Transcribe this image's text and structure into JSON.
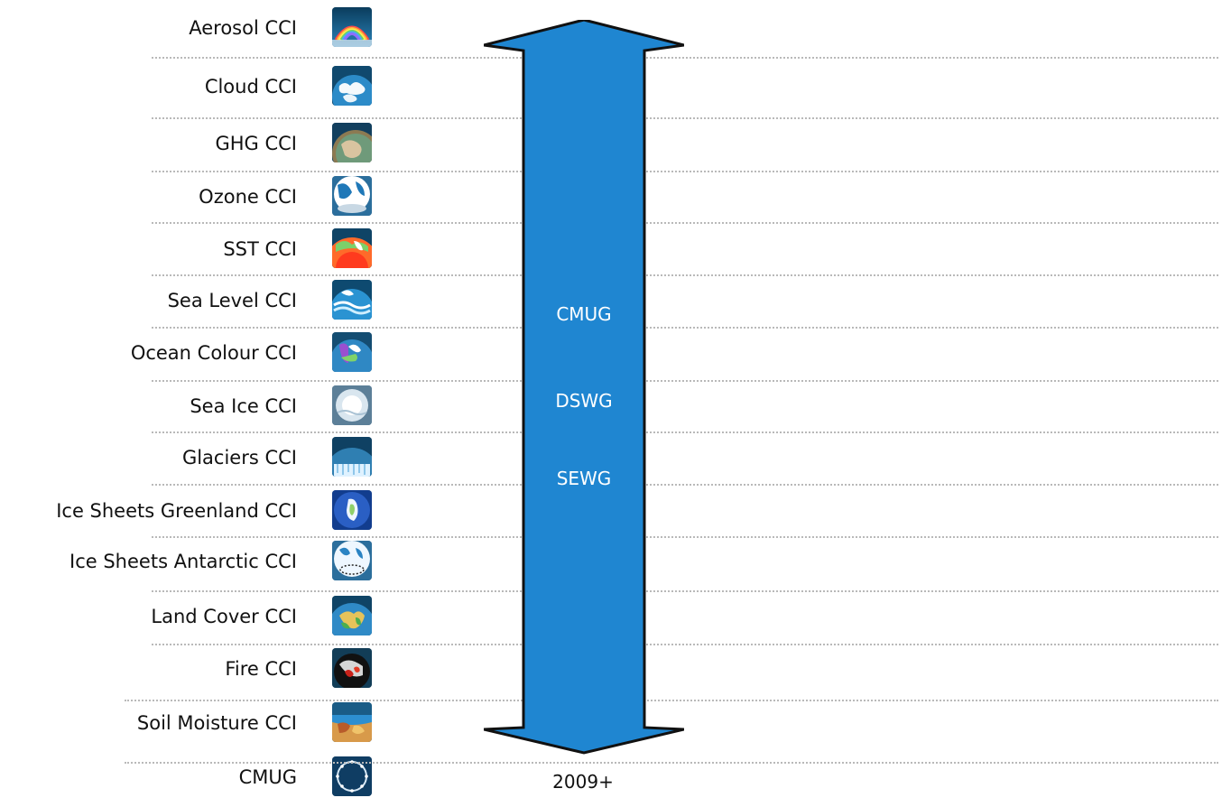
{
  "rows": [
    {
      "label": "Aerosol CCI",
      "icon": "aerosol-icon"
    },
    {
      "label": "Cloud CCI",
      "icon": "cloud-icon"
    },
    {
      "label": "GHG CCI",
      "icon": "ghg-icon"
    },
    {
      "label": "Ozone CCI",
      "icon": "ozone-icon"
    },
    {
      "label": "SST CCI",
      "icon": "sst-icon"
    },
    {
      "label": "Sea Level CCI",
      "icon": "sea-level-icon"
    },
    {
      "label": "Ocean Colour CCI",
      "icon": "ocean-colour-icon"
    },
    {
      "label": "Sea Ice CCI",
      "icon": "sea-ice-icon"
    },
    {
      "label": "Glaciers CCI",
      "icon": "glaciers-icon"
    },
    {
      "label": "Ice Sheets Greenland CCI",
      "icon": "ice-sheets-greenland-icon"
    },
    {
      "label": "Ice Sheets Antarctic CCI",
      "icon": "ice-sheets-antarctic-icon"
    },
    {
      "label": "Land Cover CCI",
      "icon": "land-cover-icon"
    },
    {
      "label": "Fire CCI",
      "icon": "fire-icon"
    },
    {
      "label": "Soil Moisture CCI",
      "icon": "soil-moisture-icon"
    },
    {
      "label": "CMUG",
      "icon": "cmug-icon"
    }
  ],
  "arrow": {
    "labels": [
      "CMUG",
      "DSWG",
      "SEWG"
    ],
    "color": "#1f86d1"
  },
  "timeline": {
    "label": "2009+"
  }
}
